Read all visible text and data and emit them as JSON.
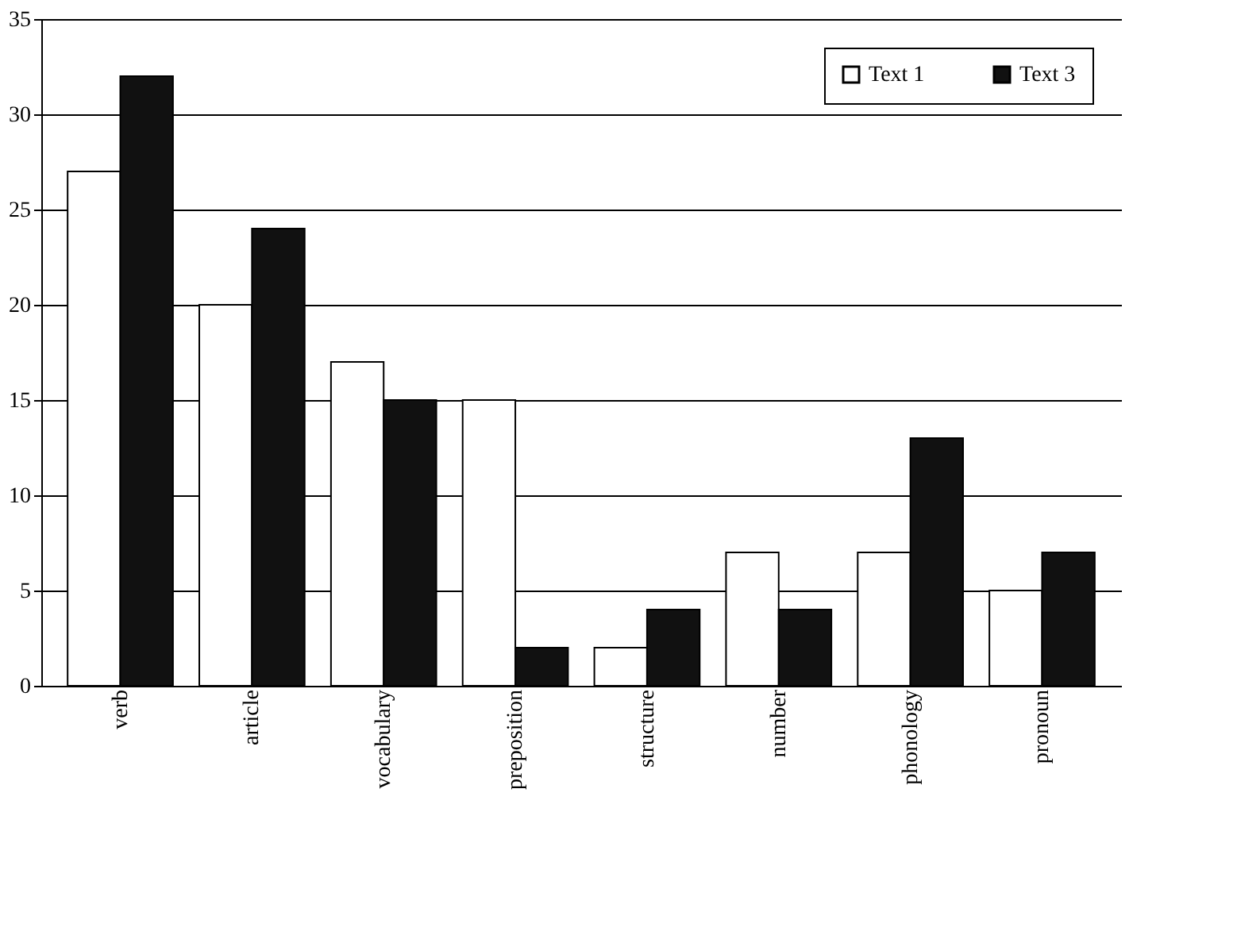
{
  "chart_data": {
    "type": "bar",
    "categories": [
      "verb",
      "article",
      "vocabulary",
      "preposition",
      "structure",
      "number",
      "phonology",
      "pronoun"
    ],
    "series": [
      {
        "name": "Text 1",
        "color": "#ffffff",
        "values": [
          27,
          20,
          17,
          15,
          2,
          7,
          7,
          5
        ]
      },
      {
        "name": "Text 3",
        "color": "#111111",
        "values": [
          32,
          24,
          15,
          2,
          4,
          4,
          13,
          7
        ]
      }
    ],
    "ylim": [
      0,
      35
    ],
    "yticks": [
      0,
      5,
      10,
      15,
      20,
      25,
      30,
      35
    ],
    "grid": "y",
    "legend": "top right"
  }
}
